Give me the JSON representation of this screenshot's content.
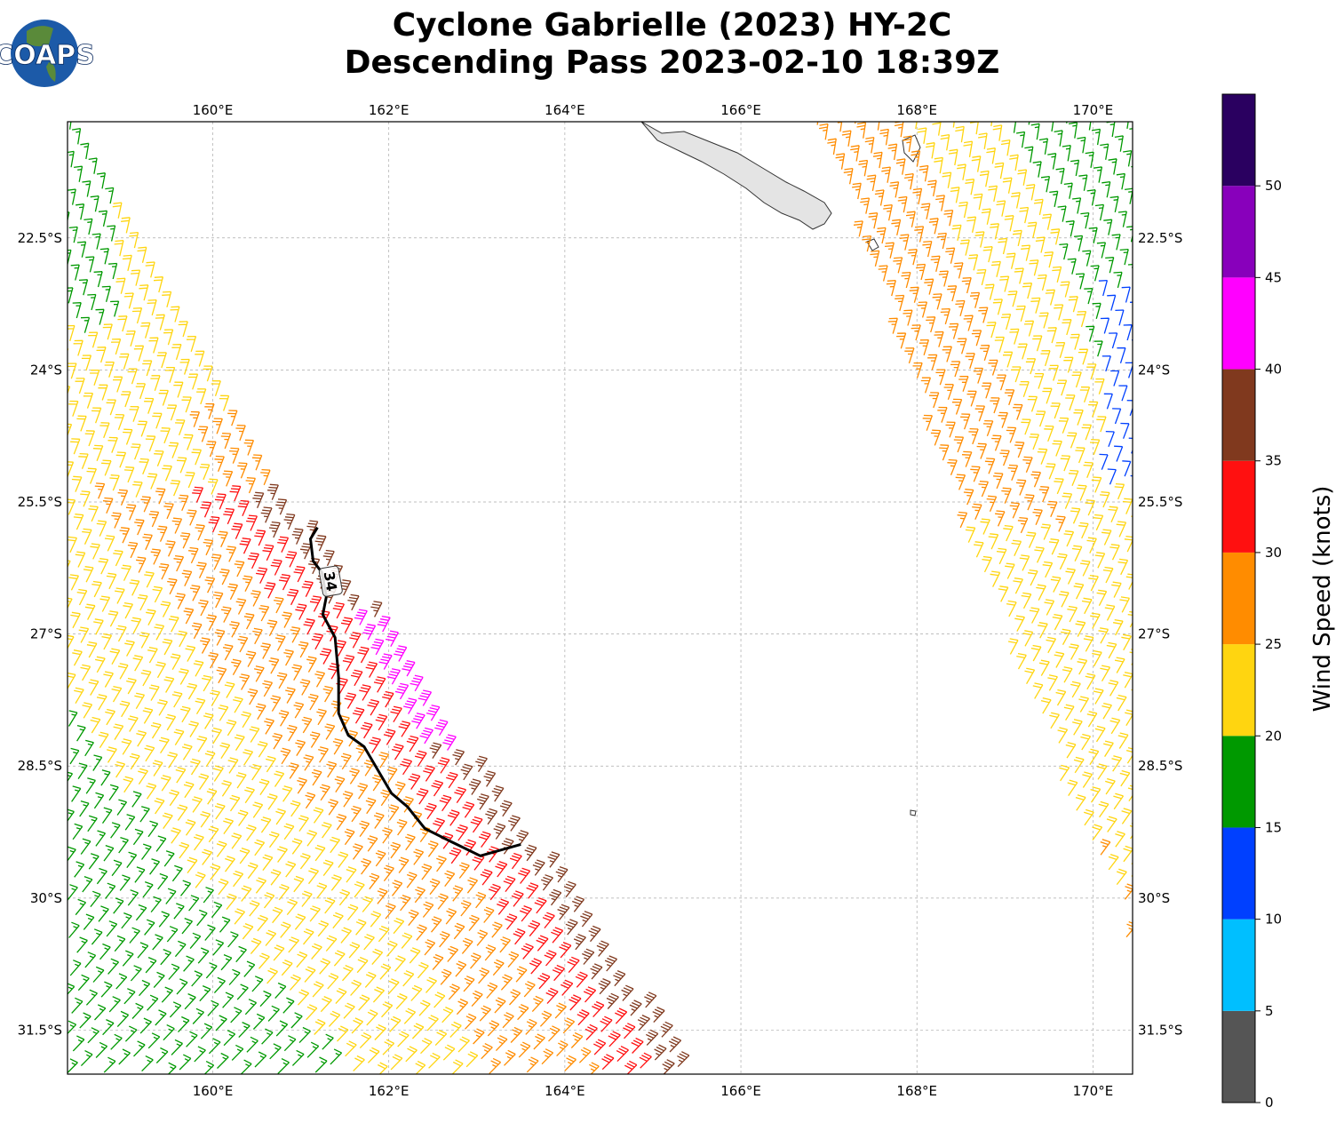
{
  "title": {
    "line1": "Cyclone Gabrielle (2023) HY-2C",
    "line2": "Descending Pass 2023-02-10 18:39Z"
  },
  "logo": {
    "text": "COAPS"
  },
  "map": {
    "lon_range": [
      158.35,
      170.45
    ],
    "lat_range_south": [
      21.18,
      32.0
    ],
    "lon_ticks": [
      {
        "v": 160,
        "label": "160°E"
      },
      {
        "v": 162,
        "label": "162°E"
      },
      {
        "v": 164,
        "label": "164°E"
      },
      {
        "v": 166,
        "label": "166°E"
      },
      {
        "v": 168,
        "label": "168°E"
      },
      {
        "v": 170,
        "label": "170°E"
      }
    ],
    "lat_ticks": [
      {
        "v": 22.5,
        "label": "22.5°S"
      },
      {
        "v": 24,
        "label": "24°S"
      },
      {
        "v": 25.5,
        "label": "25.5°S"
      },
      {
        "v": 27,
        "label": "27°S"
      },
      {
        "v": 28.5,
        "label": "28.5°S"
      },
      {
        "v": 30,
        "label": "30°S"
      },
      {
        "v": 31.5,
        "label": "31.5°S"
      }
    ],
    "gridlines": true,
    "contour": {
      "label": "34",
      "lon": 161.34,
      "lat": 26.4,
      "points": [
        [
          161.19,
          25.79
        ],
        [
          161.11,
          25.92
        ],
        [
          161.14,
          26.17
        ],
        [
          161.24,
          26.3
        ],
        [
          161.29,
          26.58
        ],
        [
          161.25,
          26.78
        ],
        [
          161.39,
          27.04
        ],
        [
          161.43,
          27.49
        ],
        [
          161.43,
          27.9
        ],
        [
          161.54,
          28.15
        ],
        [
          161.72,
          28.28
        ],
        [
          162.03,
          28.81
        ],
        [
          162.21,
          28.96
        ],
        [
          162.41,
          29.21
        ],
        [
          162.73,
          29.37
        ],
        [
          163.04,
          29.52
        ],
        [
          163.5,
          29.39
        ]
      ]
    }
  },
  "colorbar": {
    "label": "Wind Speed (knots)",
    "bins": [
      {
        "from": 0,
        "to": 5,
        "color": "#555555"
      },
      {
        "from": 5,
        "to": 10,
        "color": "#00bfff"
      },
      {
        "from": 10,
        "to": 15,
        "color": "#0040ff"
      },
      {
        "from": 15,
        "to": 20,
        "color": "#009900"
      },
      {
        "from": 20,
        "to": 25,
        "color": "#ffd510"
      },
      {
        "from": 25,
        "to": 30,
        "color": "#ff8c00"
      },
      {
        "from": 30,
        "to": 35,
        "color": "#ff1010"
      },
      {
        "from": 35,
        "to": 40,
        "color": "#80391e"
      },
      {
        "from": 40,
        "to": 45,
        "color": "#ff00ff"
      },
      {
        "from": 45,
        "to": 50,
        "color": "#8800bb"
      },
      {
        "from": 50,
        "to": 55,
        "color": "#2a0060"
      }
    ],
    "ticks": [
      "0",
      "5",
      "10",
      "15",
      "20",
      "25",
      "30",
      "35",
      "40",
      "45",
      "50"
    ]
  }
}
